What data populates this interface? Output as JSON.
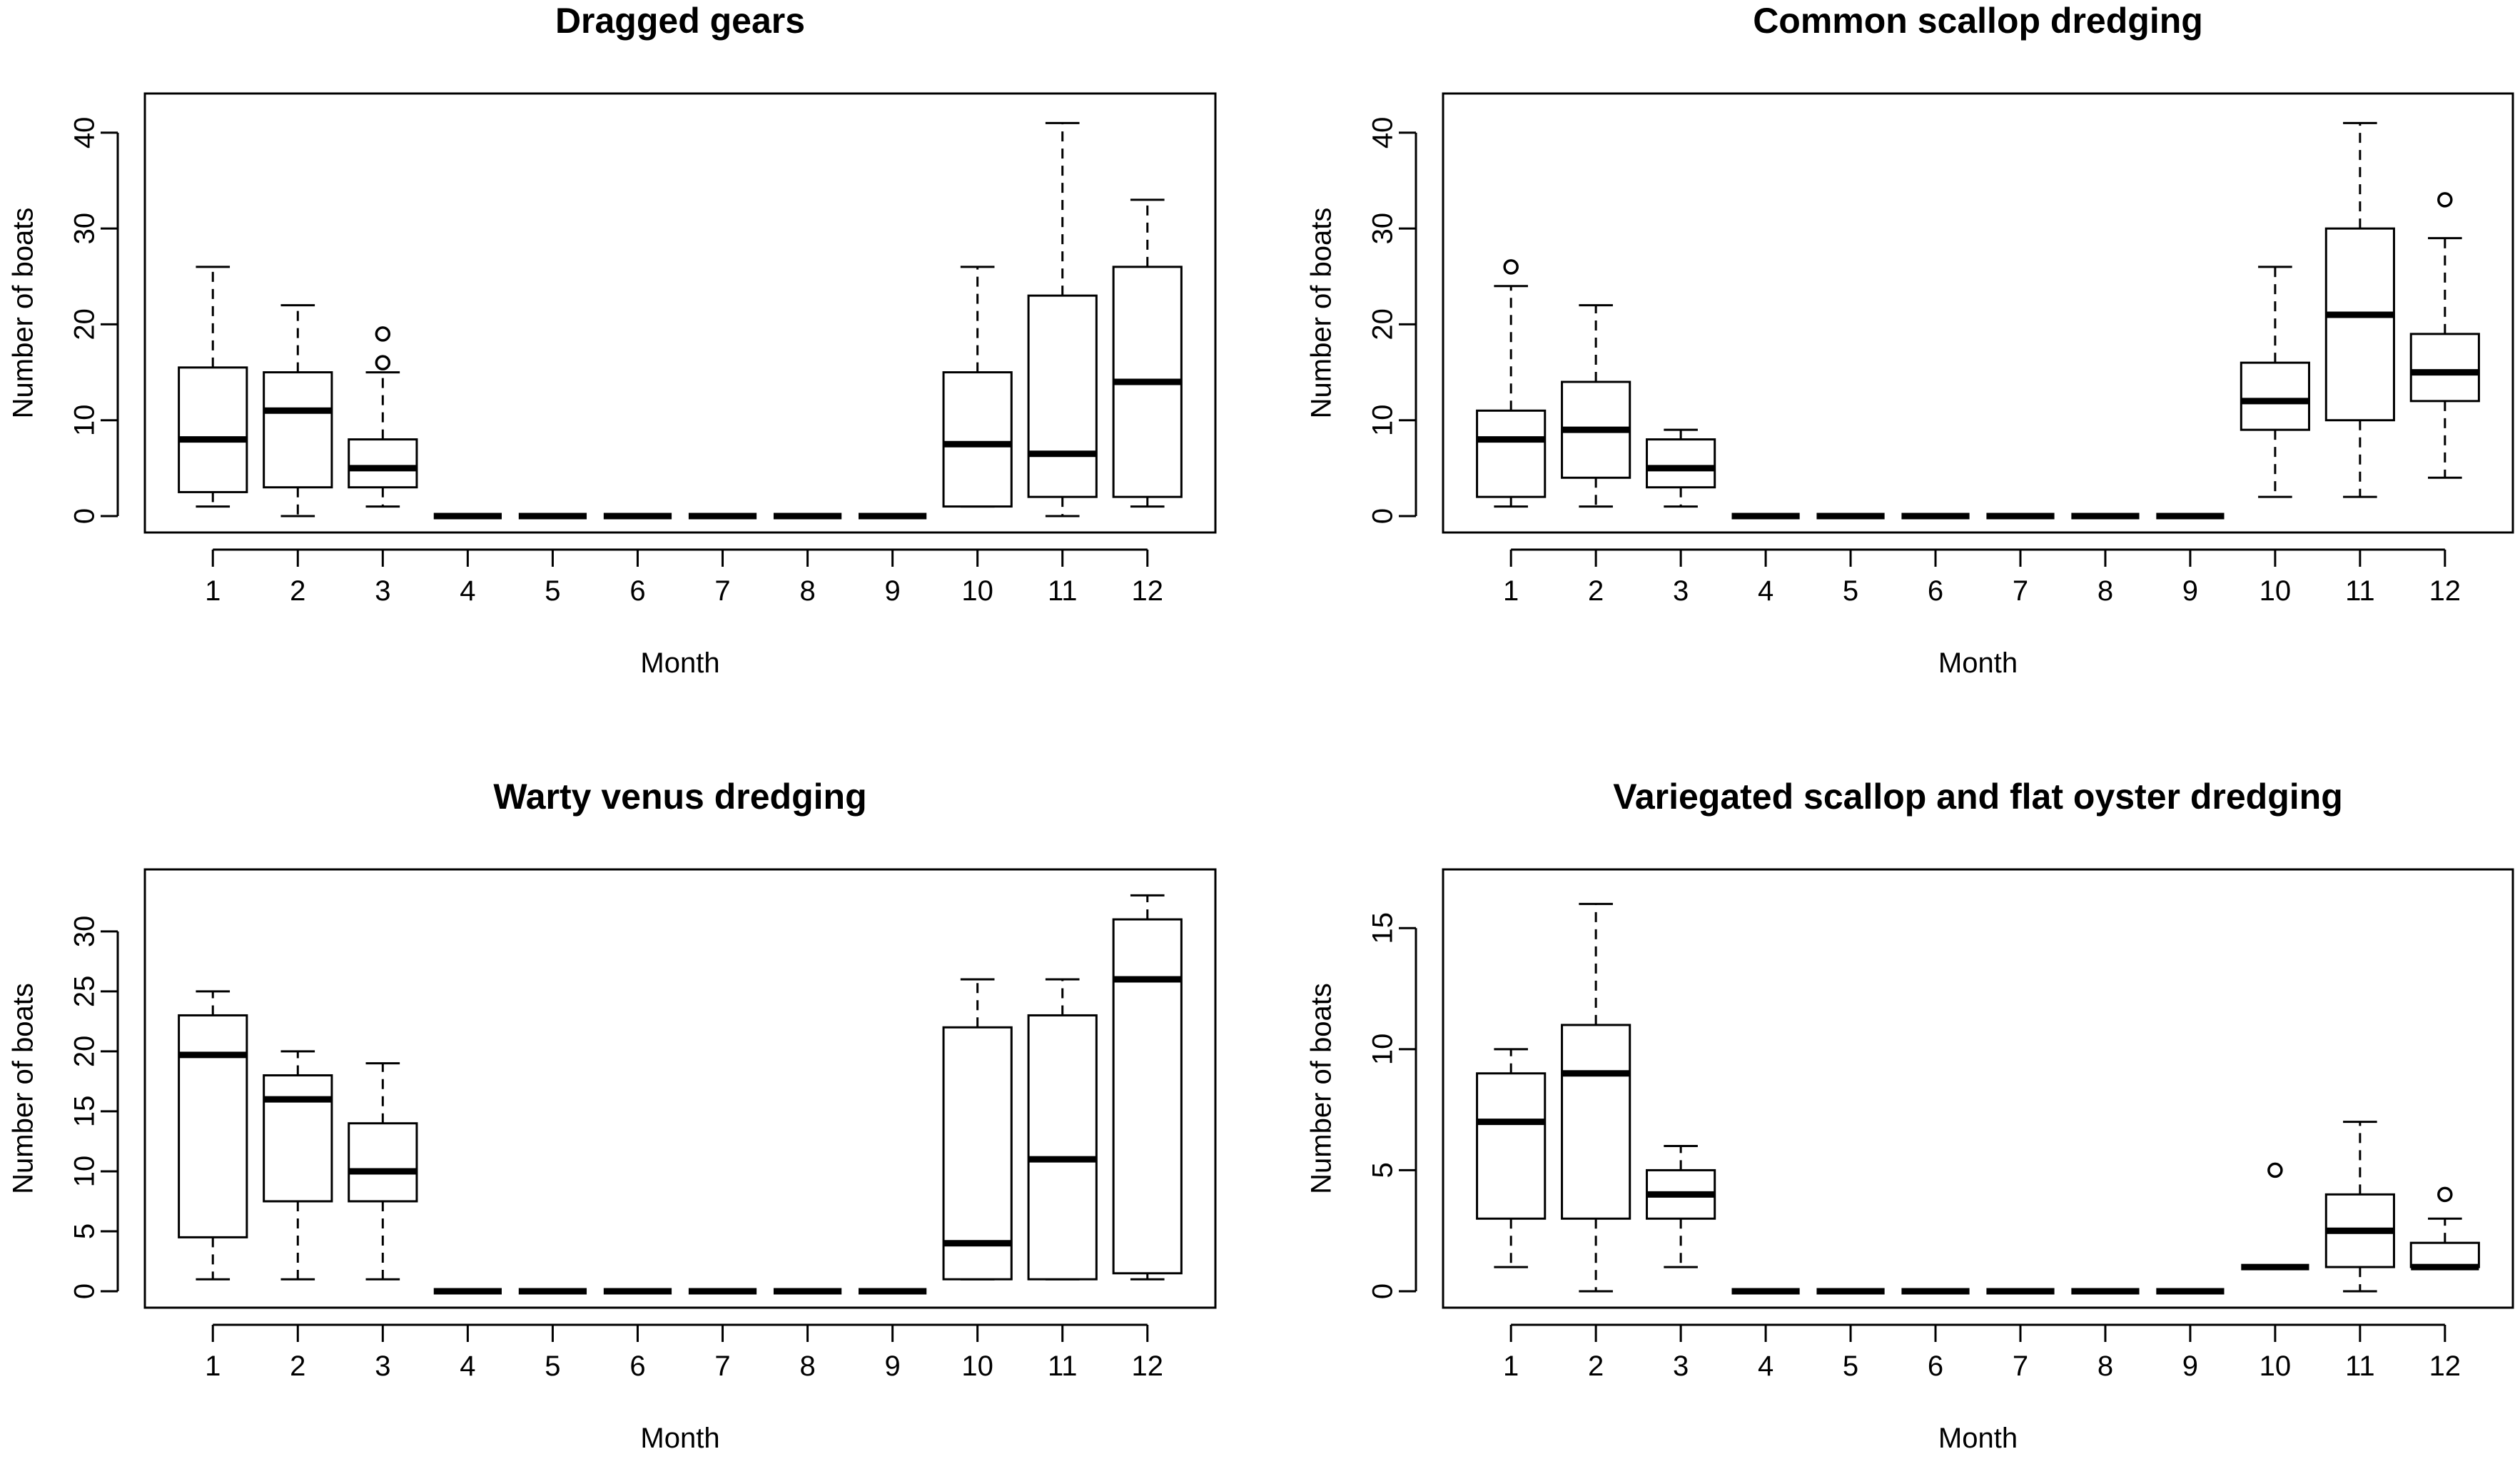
{
  "chart_data": [
    {
      "type": "boxplot",
      "title": "Dragged gears",
      "xlabel": "Month",
      "ylabel": "Number of boats",
      "ylim": [
        0,
        42
      ],
      "yticks": [
        0,
        10,
        20,
        30,
        40
      ],
      "categories": [
        "1",
        "2",
        "3",
        "4",
        "5",
        "6",
        "7",
        "8",
        "9",
        "10",
        "11",
        "12"
      ],
      "boxes": [
        {
          "lw": 1,
          "q1": 2.5,
          "med": 8,
          "q3": 15.5,
          "uw": 26,
          "out": []
        },
        {
          "lw": 0,
          "q1": 3,
          "med": 11,
          "q3": 15,
          "uw": 22,
          "out": []
        },
        {
          "lw": 1,
          "q1": 3,
          "med": 5,
          "q3": 8,
          "uw": 15,
          "out": [
            16,
            19
          ]
        },
        {
          "lw": 0,
          "q1": 0,
          "med": 0,
          "q3": 0,
          "uw": 0,
          "out": []
        },
        {
          "lw": 0,
          "q1": 0,
          "med": 0,
          "q3": 0,
          "uw": 0,
          "out": []
        },
        {
          "lw": 0,
          "q1": 0,
          "med": 0,
          "q3": 0,
          "uw": 0,
          "out": []
        },
        {
          "lw": 0,
          "q1": 0,
          "med": 0,
          "q3": 0,
          "uw": 0,
          "out": []
        },
        {
          "lw": 0,
          "q1": 0,
          "med": 0,
          "q3": 0,
          "uw": 0,
          "out": []
        },
        {
          "lw": 0,
          "q1": 0,
          "med": 0,
          "q3": 0,
          "uw": 0,
          "out": []
        },
        {
          "lw": 1,
          "q1": 1,
          "med": 7.5,
          "q3": 15,
          "uw": 26,
          "out": []
        },
        {
          "lw": 0,
          "q1": 2,
          "med": 6.5,
          "q3": 23,
          "uw": 41,
          "out": []
        },
        {
          "lw": 1,
          "q1": 2,
          "med": 14,
          "q3": 26,
          "uw": 33,
          "out": []
        }
      ]
    },
    {
      "type": "boxplot",
      "title": "Common scallop dredging",
      "xlabel": "Month",
      "ylabel": "Number of boats",
      "ylim": [
        0,
        42
      ],
      "yticks": [
        0,
        10,
        20,
        30,
        40
      ],
      "categories": [
        "1",
        "2",
        "3",
        "4",
        "5",
        "6",
        "7",
        "8",
        "9",
        "10",
        "11",
        "12"
      ],
      "boxes": [
        {
          "lw": 1,
          "q1": 2,
          "med": 8,
          "q3": 11,
          "uw": 24,
          "out": [
            26
          ]
        },
        {
          "lw": 1,
          "q1": 4,
          "med": 9,
          "q3": 14,
          "uw": 22,
          "out": []
        },
        {
          "lw": 1,
          "q1": 3,
          "med": 5,
          "q3": 8,
          "uw": 9,
          "out": []
        },
        {
          "lw": 0,
          "q1": 0,
          "med": 0,
          "q3": 0,
          "uw": 0,
          "out": []
        },
        {
          "lw": 0,
          "q1": 0,
          "med": 0,
          "q3": 0,
          "uw": 0,
          "out": []
        },
        {
          "lw": 0,
          "q1": 0,
          "med": 0,
          "q3": 0,
          "uw": 0,
          "out": []
        },
        {
          "lw": 0,
          "q1": 0,
          "med": 0,
          "q3": 0,
          "uw": 0,
          "out": []
        },
        {
          "lw": 0,
          "q1": 0,
          "med": 0,
          "q3": 0,
          "uw": 0,
          "out": []
        },
        {
          "lw": 0,
          "q1": 0,
          "med": 0,
          "q3": 0,
          "uw": 0,
          "out": []
        },
        {
          "lw": 2,
          "q1": 9,
          "med": 12,
          "q3": 16,
          "uw": 26,
          "out": []
        },
        {
          "lw": 2,
          "q1": 10,
          "med": 21,
          "q3": 30,
          "uw": 41,
          "out": []
        },
        {
          "lw": 4,
          "q1": 12,
          "med": 15,
          "q3": 19,
          "uw": 29,
          "out": [
            33
          ]
        }
      ]
    },
    {
      "type": "boxplot",
      "title": "Warty venus dredging",
      "xlabel": "Month",
      "ylabel": "Number of boats",
      "ylim": [
        0,
        33.5
      ],
      "yticks": [
        0,
        5,
        10,
        15,
        20,
        25,
        30
      ],
      "categories": [
        "1",
        "2",
        "3",
        "4",
        "5",
        "6",
        "7",
        "8",
        "9",
        "10",
        "11",
        "12"
      ],
      "boxes": [
        {
          "lw": 1,
          "q1": 4.5,
          "med": 19.7,
          "q3": 23,
          "uw": 25,
          "out": []
        },
        {
          "lw": 1,
          "q1": 7.5,
          "med": 16,
          "q3": 18,
          "uw": 20,
          "out": []
        },
        {
          "lw": 1,
          "q1": 7.5,
          "med": 10,
          "q3": 14,
          "uw": 19,
          "out": []
        },
        {
          "lw": 0,
          "q1": 0,
          "med": 0,
          "q3": 0,
          "uw": 0,
          "out": []
        },
        {
          "lw": 0,
          "q1": 0,
          "med": 0,
          "q3": 0,
          "uw": 0,
          "out": []
        },
        {
          "lw": 0,
          "q1": 0,
          "med": 0,
          "q3": 0,
          "uw": 0,
          "out": []
        },
        {
          "lw": 0,
          "q1": 0,
          "med": 0,
          "q3": 0,
          "uw": 0,
          "out": []
        },
        {
          "lw": 0,
          "q1": 0,
          "med": 0,
          "q3": 0,
          "uw": 0,
          "out": []
        },
        {
          "lw": 0,
          "q1": 0,
          "med": 0,
          "q3": 0,
          "uw": 0,
          "out": []
        },
        {
          "lw": 1,
          "q1": 1,
          "med": 4,
          "q3": 22,
          "uw": 26,
          "out": []
        },
        {
          "lw": 1,
          "q1": 1,
          "med": 11,
          "q3": 23,
          "uw": 26,
          "out": []
        },
        {
          "lw": 1,
          "q1": 1.5,
          "med": 26,
          "q3": 31,
          "uw": 33,
          "out": []
        }
      ]
    },
    {
      "type": "boxplot",
      "title": "Variegated scallop and flat oyster dredging",
      "xlabel": "Month",
      "ylabel": "Number of boats",
      "ylim": [
        0,
        16.6
      ],
      "yticks": [
        0,
        5,
        10,
        15
      ],
      "categories": [
        "1",
        "2",
        "3",
        "4",
        "5",
        "6",
        "7",
        "8",
        "9",
        "10",
        "11",
        "12"
      ],
      "boxes": [
        {
          "lw": 1,
          "q1": 3,
          "med": 7,
          "q3": 9,
          "uw": 10,
          "out": []
        },
        {
          "lw": 0,
          "q1": 3,
          "med": 9,
          "q3": 11,
          "uw": 16,
          "out": []
        },
        {
          "lw": 1,
          "q1": 3,
          "med": 4,
          "q3": 5,
          "uw": 6,
          "out": []
        },
        {
          "lw": 0,
          "q1": 0,
          "med": 0,
          "q3": 0,
          "uw": 0,
          "out": []
        },
        {
          "lw": 0,
          "q1": 0,
          "med": 0,
          "q3": 0,
          "uw": 0,
          "out": []
        },
        {
          "lw": 0,
          "q1": 0,
          "med": 0,
          "q3": 0,
          "uw": 0,
          "out": []
        },
        {
          "lw": 0,
          "q1": 0,
          "med": 0,
          "q3": 0,
          "uw": 0,
          "out": []
        },
        {
          "lw": 0,
          "q1": 0,
          "med": 0,
          "q3": 0,
          "uw": 0,
          "out": []
        },
        {
          "lw": 0,
          "q1": 0,
          "med": 0,
          "q3": 0,
          "uw": 0,
          "out": []
        },
        {
          "lw": 1,
          "q1": 1,
          "med": 1,
          "q3": 1,
          "uw": 1,
          "out": [
            5
          ]
        },
        {
          "lw": 0,
          "q1": 1,
          "med": 2.5,
          "q3": 4,
          "uw": 7,
          "out": []
        },
        {
          "lw": 1,
          "q1": 1,
          "med": 1,
          "q3": 2,
          "uw": 3,
          "out": [
            4
          ]
        }
      ]
    }
  ]
}
